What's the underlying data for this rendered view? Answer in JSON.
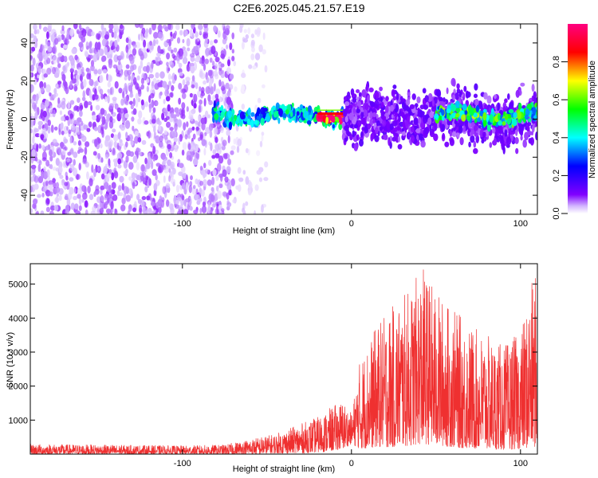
{
  "title": "C2E6.2025.045.21.57.E19",
  "chart_data": [
    {
      "type": "heatmap",
      "xlabel": "Height of straight line (km)",
      "ylabel": "Frequency (Hz)",
      "xlim": [
        -190,
        110
      ],
      "ylim": [
        -50,
        50
      ],
      "xticks": [
        -100,
        0,
        100
      ],
      "yticks": [
        -40,
        -20,
        0,
        20,
        40
      ],
      "colorbar": {
        "label": "Normalized spectral amplitude",
        "range": [
          0,
          1
        ],
        "ticks": [
          "0.0",
          "0.2",
          "0.4",
          "0.6",
          "0.8"
        ],
        "tick_values": [
          0,
          0.2,
          0.4,
          0.6,
          0.8
        ],
        "colors": [
          "#ffffff",
          "#8000ff",
          "#0000ff",
          "#00ffff",
          "#00ff00",
          "#ffff00",
          "#ff0000",
          "#ff0080"
        ]
      },
      "regions": [
        {
          "x_range": [
            -190,
            -70
          ],
          "f_range": [
            -50,
            50
          ],
          "level": 0.05,
          "note_color": "#7a2bff"
        },
        {
          "x_range": [
            -70,
            -50
          ],
          "f_range": [
            -50,
            50
          ],
          "level": 0.02,
          "note_color": "#c9a8ff"
        },
        {
          "x_range": [
            -82,
            -5
          ],
          "center_hz": 2,
          "width_hz": 6,
          "level": 0.35
        },
        {
          "x_range": [
            -20,
            -5
          ],
          "center_hz": 2,
          "width_hz": 2,
          "level": 0.9
        },
        {
          "x_range": [
            -5,
            110
          ],
          "center_hz": 1,
          "width_hz": 20,
          "level": 0.1
        },
        {
          "x_range": [
            50,
            110
          ],
          "center_hz": 2,
          "width_hz": 6,
          "level": 0.45
        }
      ]
    },
    {
      "type": "line",
      "xlabel": "Height of straight line (km)",
      "ylabel": "SNR (10 * v/v)",
      "xlim": [
        -190,
        110
      ],
      "ylim": [
        0,
        5600
      ],
      "xticks": [
        -100,
        0,
        100
      ],
      "yticks": [
        1000,
        2000,
        3000,
        4000,
        5000
      ],
      "color": "#ef3030",
      "envelope": [
        {
          "x": -190,
          "low": 0,
          "high": 300
        },
        {
          "x": -150,
          "low": 0,
          "high": 280
        },
        {
          "x": -100,
          "low": 0,
          "high": 250
        },
        {
          "x": -75,
          "low": 0,
          "high": 280
        },
        {
          "x": -60,
          "low": 0,
          "high": 450
        },
        {
          "x": -45,
          "low": 20,
          "high": 600
        },
        {
          "x": -30,
          "low": 30,
          "high": 900
        },
        {
          "x": -20,
          "low": 50,
          "high": 1100
        },
        {
          "x": -10,
          "low": 100,
          "high": 1450
        },
        {
          "x": -5,
          "low": 150,
          "high": 1600
        },
        {
          "x": 0,
          "low": 300,
          "high": 1200
        },
        {
          "x": 5,
          "low": 150,
          "high": 2800
        },
        {
          "x": 15,
          "low": 200,
          "high": 3800
        },
        {
          "x": 25,
          "low": 200,
          "high": 4400
        },
        {
          "x": 35,
          "low": 250,
          "high": 4900
        },
        {
          "x": 42,
          "low": 300,
          "high": 5550
        },
        {
          "x": 50,
          "low": 250,
          "high": 4800
        },
        {
          "x": 60,
          "low": 200,
          "high": 4300
        },
        {
          "x": 70,
          "low": 150,
          "high": 3800
        },
        {
          "x": 80,
          "low": 150,
          "high": 3500
        },
        {
          "x": 90,
          "low": 120,
          "high": 3200
        },
        {
          "x": 100,
          "low": 150,
          "high": 3600
        },
        {
          "x": 108,
          "low": 200,
          "high": 5300
        }
      ]
    }
  ]
}
